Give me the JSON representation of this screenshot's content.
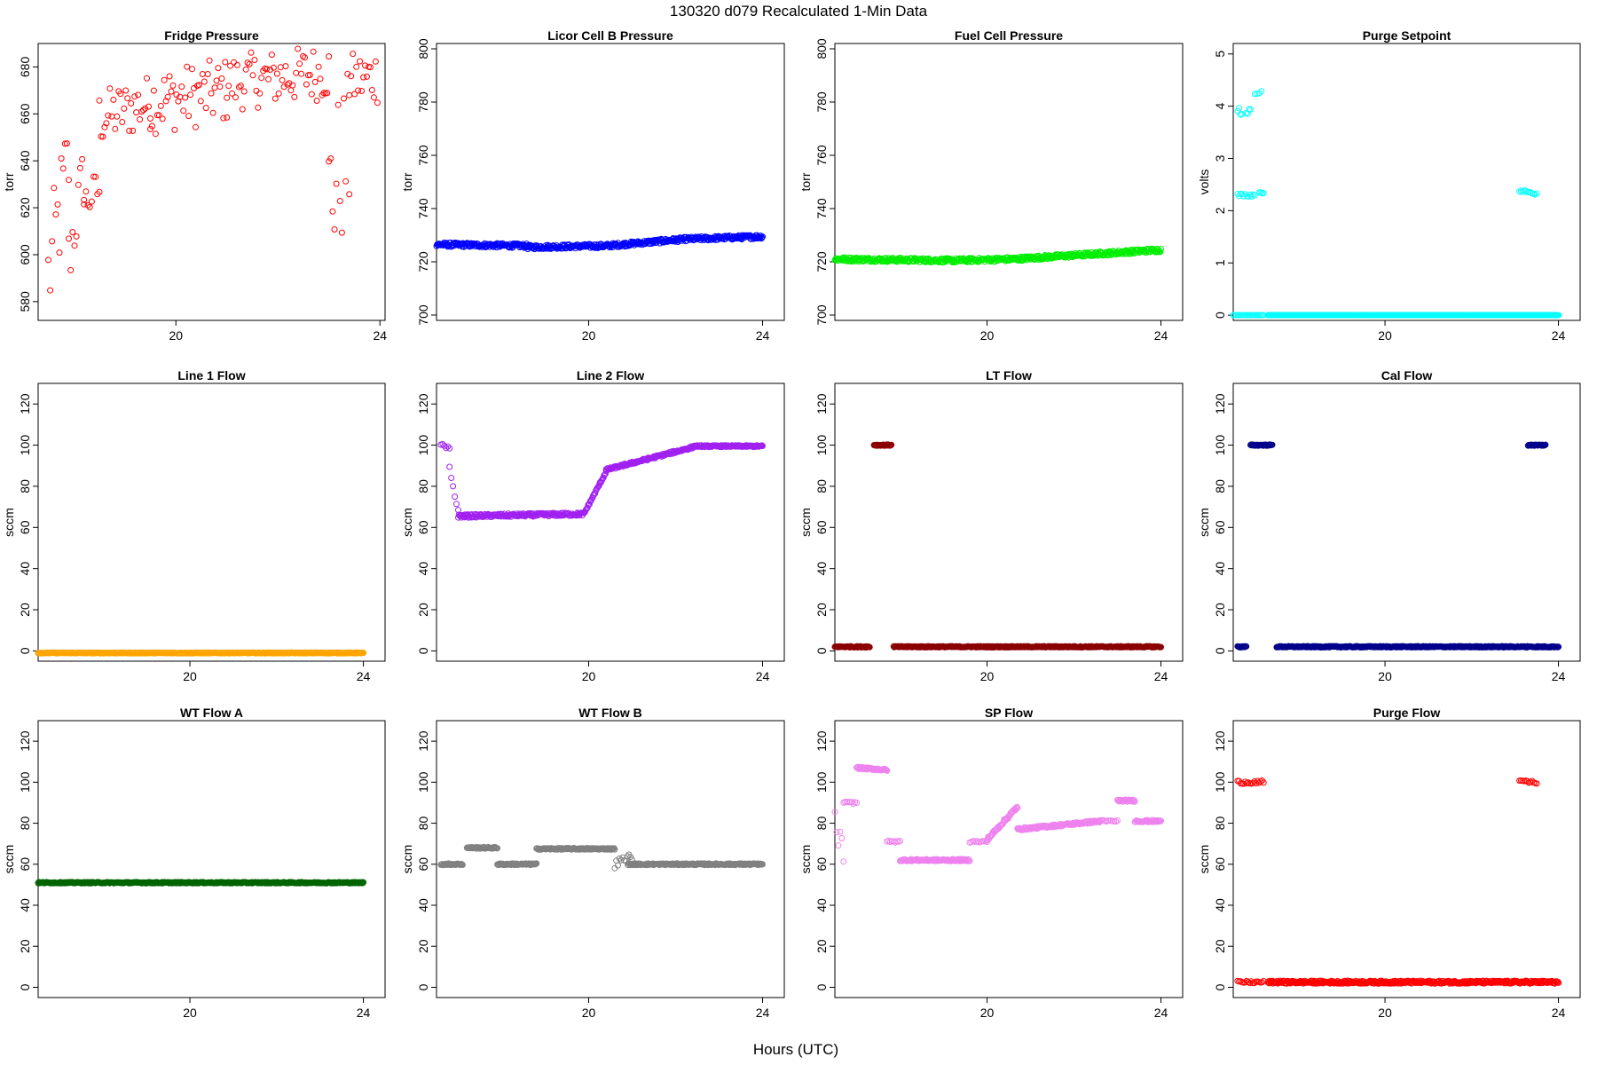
{
  "figure": {
    "title": "130320   d079   Recalculated 1-Min Data",
    "xlabel": "Hours (UTC)"
  },
  "chart_data": [
    {
      "type": "scatter",
      "title": "Fridge Pressure",
      "ylabel": "torr",
      "color": "#ff0000",
      "xlim": [
        17.3,
        24.1
      ],
      "ylim": [
        572,
        690
      ],
      "yticks": [
        580,
        600,
        620,
        640,
        660,
        680
      ],
      "xticks": [
        20,
        24
      ],
      "segments": [
        {
          "x0": 17.5,
          "x1": 17.9,
          "y0": 590,
          "y1": 640,
          "noise": 25
        },
        {
          "x0": 17.9,
          "x1": 18.2,
          "y0": 598,
          "y1": 635,
          "noise": 15
        },
        {
          "x0": 18.2,
          "x1": 18.5,
          "y0": 622,
          "y1": 628,
          "noise": 9
        },
        {
          "x0": 18.5,
          "x1": 19.5,
          "y0": 658,
          "y1": 665,
          "noise": 12
        },
        {
          "x0": 19.5,
          "x1": 21.0,
          "y0": 665,
          "y1": 670,
          "noise": 14
        },
        {
          "x0": 21.0,
          "x1": 23.0,
          "y0": 673,
          "y1": 678,
          "noise": 12
        },
        {
          "x0": 23.0,
          "x1": 23.4,
          "y0": 625,
          "y1": 645,
          "noise": 35
        },
        {
          "x0": 23.4,
          "x1": 23.95,
          "y0": 674,
          "y1": 676,
          "noise": 12
        }
      ]
    },
    {
      "type": "scatter",
      "title": "Licor Cell B Pressure",
      "ylabel": "torr",
      "color": "#0000ff",
      "xlim": [
        16.5,
        24.5
      ],
      "ylim": [
        698,
        802
      ],
      "yticks": [
        700,
        720,
        740,
        760,
        780,
        800
      ],
      "xticks": [
        20,
        24
      ],
      "segments": [
        {
          "x0": 16.5,
          "x1": 18.6,
          "y0": 726.5,
          "y1": 726,
          "noise": 0.8,
          "dense": true
        },
        {
          "x0": 18.6,
          "x1": 20.4,
          "y0": 725.5,
          "y1": 726,
          "noise": 0.8,
          "dense": true
        },
        {
          "x0": 20.4,
          "x1": 22.2,
          "y0": 726,
          "y1": 728.5,
          "noise": 0.8,
          "dense": true
        },
        {
          "x0": 22.2,
          "x1": 24.0,
          "y0": 728.5,
          "y1": 729.5,
          "noise": 0.8,
          "dense": true
        }
      ]
    },
    {
      "type": "scatter",
      "title": "Fuel Cell Pressure",
      "ylabel": "torr",
      "color": "#00ee00",
      "xlim": [
        16.5,
        24.5
      ],
      "ylim": [
        698,
        802
      ],
      "yticks": [
        700,
        720,
        740,
        760,
        780,
        800
      ],
      "xticks": [
        20,
        24
      ],
      "segments": [
        {
          "x0": 16.5,
          "x1": 19.2,
          "y0": 721,
          "y1": 720.5,
          "noise": 0.8,
          "dense": true
        },
        {
          "x0": 19.2,
          "x1": 20.6,
          "y0": 720.5,
          "y1": 721,
          "noise": 0.8,
          "dense": true
        },
        {
          "x0": 20.6,
          "x1": 24.0,
          "y0": 721,
          "y1": 724.5,
          "noise": 0.8,
          "dense": true
        }
      ]
    },
    {
      "type": "scatter",
      "title": "Purge Setpoint",
      "ylabel": "volts",
      "color": "#00ffff",
      "xlim": [
        16.5,
        24.5
      ],
      "ylim": [
        -0.1,
        5.2
      ],
      "yticks": [
        0,
        1,
        2,
        3,
        4,
        5
      ],
      "xticks": [
        20,
        24
      ],
      "segments": [
        {
          "x0": 16.6,
          "x1": 17.0,
          "y0": 2.3,
          "y1": 2.3,
          "noise": 0.03
        },
        {
          "x0": 16.6,
          "x1": 16.7,
          "y0": 3.95,
          "y1": 3.85,
          "noise": 0.05
        },
        {
          "x0": 16.8,
          "x1": 16.9,
          "y0": 3.9,
          "y1": 3.9,
          "noise": 0.05
        },
        {
          "x0": 17.0,
          "x1": 17.15,
          "y0": 4.2,
          "y1": 4.3,
          "noise": 0.1
        },
        {
          "x0": 17.1,
          "x1": 17.2,
          "y0": 2.35,
          "y1": 2.35,
          "noise": 0.02
        },
        {
          "x0": 16.5,
          "x1": 17.2,
          "y0": 0,
          "y1": 0,
          "noise": 0
        },
        {
          "x0": 17.3,
          "x1": 24.0,
          "y0": 0,
          "y1": 0,
          "noise": 0,
          "dense": true
        },
        {
          "x0": 23.1,
          "x1": 23.5,
          "y0": 2.38,
          "y1": 2.33,
          "noise": 0.03
        }
      ]
    },
    {
      "type": "scatter",
      "title": "Line 1 Flow",
      "ylabel": "sccm",
      "color": "#ffa500",
      "xlim": [
        16.5,
        24.5
      ],
      "ylim": [
        -5,
        130
      ],
      "yticks": [
        0,
        20,
        40,
        60,
        80,
        100,
        120
      ],
      "xticks": [
        20,
        24
      ],
      "segments": [
        {
          "x0": 16.5,
          "x1": 24.0,
          "y0": -1,
          "y1": -1,
          "noise": 0.2,
          "dense": true
        }
      ]
    },
    {
      "type": "scatter",
      "title": "Line 2 Flow",
      "ylabel": "sccm",
      "color": "#a020f0",
      "xlim": [
        16.5,
        24.5
      ],
      "ylim": [
        -5,
        130
      ],
      "yticks": [
        0,
        20,
        40,
        60,
        80,
        100,
        120
      ],
      "xticks": [
        20,
        24
      ],
      "segments": [
        {
          "x0": 16.6,
          "x1": 16.8,
          "y0": 100,
          "y1": 98,
          "noise": 1
        },
        {
          "x0": 16.8,
          "x1": 17.0,
          "y0": 88,
          "y1": 68,
          "noise": 2
        },
        {
          "x0": 17.0,
          "x1": 19.9,
          "y0": 65.5,
          "y1": 66.5,
          "noise": 0.8,
          "dense": true
        },
        {
          "x0": 19.9,
          "x1": 20.4,
          "y0": 67,
          "y1": 87,
          "noise": 0.5,
          "dense": true
        },
        {
          "x0": 20.4,
          "x1": 22.4,
          "y0": 88,
          "y1": 99,
          "noise": 0.6,
          "dense": true
        },
        {
          "x0": 22.4,
          "x1": 24.0,
          "y0": 99.5,
          "y1": 99.5,
          "noise": 0.4,
          "dense": true
        }
      ]
    },
    {
      "type": "scatter",
      "title": "LT Flow",
      "ylabel": "sccm",
      "color": "#8b0000",
      "xlim": [
        16.5,
        24.5
      ],
      "ylim": [
        -5,
        130
      ],
      "yticks": [
        0,
        20,
        40,
        60,
        80,
        100,
        120
      ],
      "xticks": [
        20,
        24
      ],
      "segments": [
        {
          "x0": 16.5,
          "x1": 17.3,
          "y0": 2,
          "y1": 2,
          "noise": 0.3,
          "dense": true
        },
        {
          "x0": 17.4,
          "x1": 17.8,
          "y0": 100,
          "y1": 100,
          "noise": 0.3,
          "dense": true
        },
        {
          "x0": 17.85,
          "x1": 24.0,
          "y0": 2,
          "y1": 2,
          "noise": 0.3,
          "dense": true
        }
      ]
    },
    {
      "type": "scatter",
      "title": "Cal Flow",
      "ylabel": "sccm",
      "color": "#00008b",
      "xlim": [
        16.5,
        24.5
      ],
      "ylim": [
        -5,
        130
      ],
      "yticks": [
        0,
        20,
        40,
        60,
        80,
        100,
        120
      ],
      "xticks": [
        20,
        24
      ],
      "segments": [
        {
          "x0": 16.6,
          "x1": 16.8,
          "y0": 2,
          "y1": 2,
          "noise": 0.3,
          "dense": true
        },
        {
          "x0": 16.9,
          "x1": 17.4,
          "y0": 100,
          "y1": 100,
          "noise": 0.3,
          "dense": true
        },
        {
          "x0": 17.5,
          "x1": 23.3,
          "y0": 2,
          "y1": 2,
          "noise": 0.3,
          "dense": true
        },
        {
          "x0": 23.3,
          "x1": 23.7,
          "y0": 100,
          "y1": 100,
          "noise": 0.3,
          "dense": true
        },
        {
          "x0": 23.35,
          "x1": 24.0,
          "y0": 2,
          "y1": 2,
          "noise": 0.3,
          "dense": true
        }
      ]
    },
    {
      "type": "scatter",
      "title": "WT Flow A",
      "ylabel": "sccm",
      "color": "#006400",
      "xlim": [
        16.5,
        24.5
      ],
      "ylim": [
        -5,
        130
      ],
      "yticks": [
        0,
        20,
        40,
        60,
        80,
        100,
        120
      ],
      "xticks": [
        20,
        24
      ],
      "segments": [
        {
          "x0": 16.5,
          "x1": 24.0,
          "y0": 51,
          "y1": 51,
          "noise": 0.3,
          "dense": true
        }
      ]
    },
    {
      "type": "scatter",
      "title": "WT Flow B",
      "ylabel": "sccm",
      "color": "#808080",
      "xlim": [
        16.5,
        24.5
      ],
      "ylim": [
        -5,
        130
      ],
      "yticks": [
        0,
        20,
        40,
        60,
        80,
        100,
        120
      ],
      "xticks": [
        20,
        24
      ],
      "segments": [
        {
          "x0": 16.6,
          "x1": 17.1,
          "y0": 60,
          "y1": 60,
          "noise": 0.4,
          "dense": true
        },
        {
          "x0": 17.2,
          "x1": 17.9,
          "y0": 68,
          "y1": 68,
          "noise": 0.4,
          "dense": true
        },
        {
          "x0": 17.9,
          "x1": 18.8,
          "y0": 60,
          "y1": 60,
          "noise": 0.4,
          "dense": true
        },
        {
          "x0": 18.8,
          "x1": 20.6,
          "y0": 67.5,
          "y1": 67.5,
          "noise": 0.4,
          "dense": true
        },
        {
          "x0": 20.6,
          "x1": 21.0,
          "y0": 60,
          "y1": 64,
          "noise": 2
        },
        {
          "x0": 20.9,
          "x1": 24.0,
          "y0": 60,
          "y1": 60,
          "noise": 0.4,
          "dense": true
        }
      ]
    },
    {
      "type": "scatter",
      "title": "SP Flow",
      "ylabel": "sccm",
      "color": "#ee82ee",
      "xlim": [
        16.5,
        24.5
      ],
      "ylim": [
        -5,
        130
      ],
      "yticks": [
        0,
        20,
        40,
        60,
        80,
        100,
        120
      ],
      "xticks": [
        20,
        24
      ],
      "segments": [
        {
          "x0": 16.5,
          "x1": 16.7,
          "y0": 80,
          "y1": 65,
          "noise": 6
        },
        {
          "x0": 16.7,
          "x1": 17.0,
          "y0": 90,
          "y1": 90,
          "noise": 0.5
        },
        {
          "x0": 17.0,
          "x1": 17.7,
          "y0": 107,
          "y1": 106,
          "noise": 0.5,
          "dense": true
        },
        {
          "x0": 17.7,
          "x1": 18.0,
          "y0": 71,
          "y1": 71,
          "noise": 0.5
        },
        {
          "x0": 18.0,
          "x1": 19.6,
          "y0": 62,
          "y1": 62,
          "noise": 0.5,
          "dense": true
        },
        {
          "x0": 19.6,
          "x1": 20.0,
          "y0": 71,
          "y1": 71,
          "noise": 0.5
        },
        {
          "x0": 20.0,
          "x1": 20.7,
          "y0": 72,
          "y1": 88,
          "noise": 0.8,
          "dense": true
        },
        {
          "x0": 20.7,
          "x1": 22.6,
          "y0": 77,
          "y1": 81,
          "noise": 0.6,
          "dense": true
        },
        {
          "x0": 22.6,
          "x1": 23.0,
          "y0": 81,
          "y1": 81,
          "noise": 0.5
        },
        {
          "x0": 23.0,
          "x1": 23.4,
          "y0": 91,
          "y1": 91,
          "noise": 0.5,
          "dense": true
        },
        {
          "x0": 23.4,
          "x1": 24.0,
          "y0": 81,
          "y1": 81,
          "noise": 0.5,
          "dense": true
        }
      ]
    },
    {
      "type": "scatter",
      "title": "Purge Flow",
      "ylabel": "sccm",
      "color": "#ff0000",
      "xlim": [
        16.5,
        24.5
      ],
      "ylim": [
        -5,
        130
      ],
      "yticks": [
        0,
        20,
        40,
        60,
        80,
        100,
        120
      ],
      "xticks": [
        20,
        24
      ],
      "segments": [
        {
          "x0": 16.6,
          "x1": 17.2,
          "y0": 100,
          "y1": 100,
          "noise": 0.8
        },
        {
          "x0": 16.6,
          "x1": 17.2,
          "y0": 2.5,
          "y1": 2.5,
          "noise": 0.6
        },
        {
          "x0": 17.3,
          "x1": 24.0,
          "y0": 2.5,
          "y1": 2.5,
          "noise": 0.7,
          "dense": true
        },
        {
          "x0": 23.1,
          "x1": 23.5,
          "y0": 100,
          "y1": 100,
          "noise": 0.8
        }
      ]
    }
  ]
}
